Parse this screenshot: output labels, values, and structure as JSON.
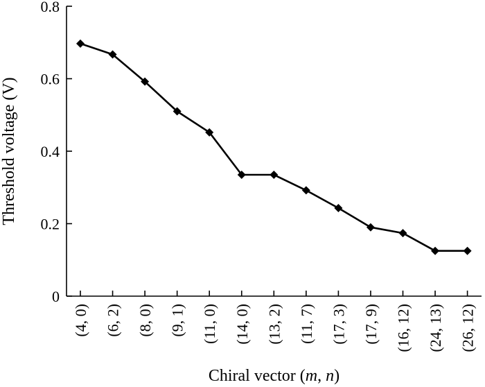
{
  "chart_data": {
    "type": "line",
    "categories": [
      "(4, 0)",
      "(6, 2)",
      "(8, 0)",
      "(9, 1)",
      "(11, 0)",
      "(14, 0)",
      "(13, 2)",
      "(11, 7)",
      "(17, 3)",
      "(17, 9)",
      "(16, 12)",
      "(24, 13)",
      "(26, 12)"
    ],
    "series": [
      {
        "values": [
          0.697,
          0.667,
          0.592,
          0.51,
          0.452,
          0.335,
          0.335,
          0.292,
          0.243,
          0.19,
          0.174,
          0.125,
          0.125
        ]
      }
    ],
    "xlabel_parts": [
      "Chiral vector (",
      "m",
      ", ",
      "n",
      ")"
    ],
    "ylabel": "Threshold voltage (V)",
    "ylim": [
      0,
      0.8
    ],
    "yticks": [
      0,
      0.2,
      0.4,
      0.6,
      0.8
    ],
    "ytick_labels": [
      "0",
      "0.2",
      "0.4",
      "0.6",
      "0.8"
    ],
    "grid": false,
    "marker": "diamond",
    "line_color": "#000000"
  }
}
